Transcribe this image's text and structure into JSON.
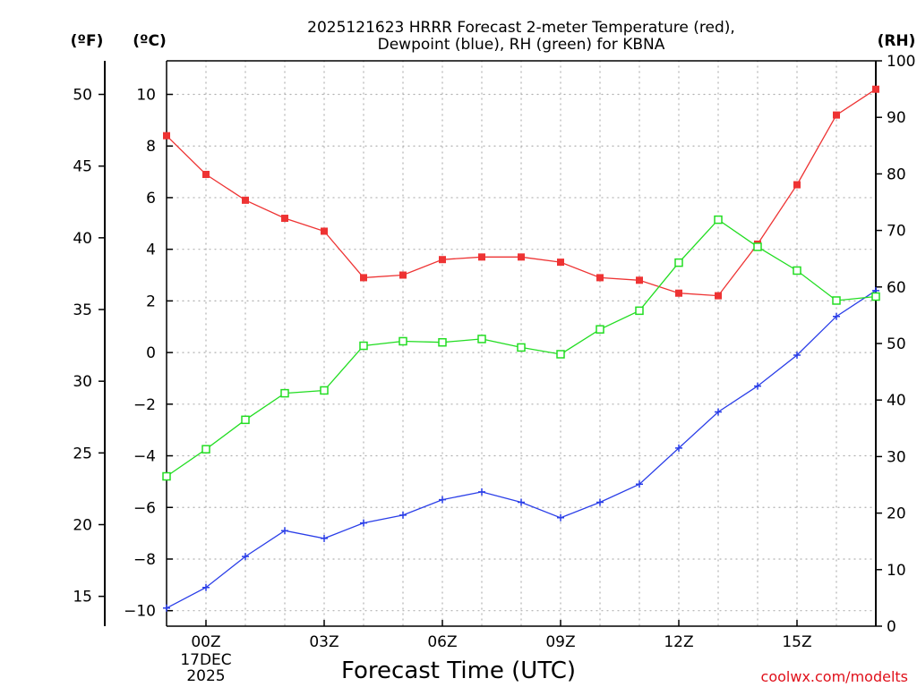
{
  "chart_data": {
    "type": "line",
    "title_line1": "2025121623 HRRR Forecast 2-meter Temperature (red),",
    "title_line2": "Dewpoint (blue), RH (green) for KBNA",
    "xlabel": "Forecast Time (UTC)",
    "date_label_line1": "17DEC",
    "date_label_line2": "2025",
    "credit": "coolwx.com/modelts",
    "units": {
      "fahrenheit": "(ºF)",
      "celsius": "(ºC)",
      "rh": "(RH)"
    },
    "x_range": [
      -1,
      17
    ],
    "x_ticks": [
      {
        "hour": 0,
        "label": "00Z"
      },
      {
        "hour": 3,
        "label": "03Z"
      },
      {
        "hour": 6,
        "label": "06Z"
      },
      {
        "hour": 9,
        "label": "09Z"
      },
      {
        "hour": 12,
        "label": "12Z"
      },
      {
        "hour": 15,
        "label": "15Z"
      }
    ],
    "celsius_range": [
      -10.6,
      11.3
    ],
    "celsius_ticks": [
      10,
      8,
      6,
      4,
      2,
      0,
      -2,
      -4,
      -6,
      -8,
      -10
    ],
    "celsius_tick_labels": [
      "10",
      "8",
      "6",
      "4",
      "2",
      "0",
      "−2",
      "−4",
      "−6",
      "−8",
      "−10"
    ],
    "fahrenheit_ticks": [
      50,
      45,
      40,
      35,
      30,
      25,
      20,
      15
    ],
    "fahrenheit_tick_labels": [
      "50",
      "45",
      "40",
      "35",
      "30",
      "25",
      "20",
      "15"
    ],
    "rh_range": [
      0,
      100
    ],
    "rh_ticks": [
      100,
      90,
      80,
      70,
      60,
      50,
      40,
      30,
      20,
      10,
      0
    ],
    "rh_tick_labels": [
      "100",
      "90",
      "80",
      "70",
      "60",
      "50",
      "40",
      "30",
      "20",
      "10",
      "0"
    ],
    "x": [
      -1,
      0,
      1,
      2,
      3,
      4,
      5,
      6,
      7,
      8,
      9,
      10,
      11,
      12,
      13,
      14,
      15,
      16,
      17
    ],
    "series": [
      {
        "name": "2-meter Temperature",
        "axis": "celsius",
        "color": "#ee3333",
        "marker": "filled-square",
        "values": [
          8.4,
          6.9,
          5.9,
          5.2,
          4.7,
          2.9,
          3.0,
          3.6,
          3.7,
          3.7,
          3.5,
          2.9,
          2.8,
          2.3,
          2.2,
          4.2,
          6.5,
          9.2,
          10.2
        ]
      },
      {
        "name": "Dewpoint",
        "axis": "celsius",
        "color": "#2a3ee8",
        "marker": "plus",
        "values": [
          -9.9,
          -9.1,
          -7.9,
          -6.9,
          -7.2,
          -6.6,
          -6.3,
          -5.7,
          -5.4,
          -5.8,
          -6.4,
          -5.8,
          -5.1,
          -3.7,
          -2.3,
          -1.3,
          -0.1,
          1.4,
          2.4
        ]
      },
      {
        "name": "Relative Humidity",
        "axis": "rh",
        "color": "#22dd22",
        "marker": "open-square",
        "values": [
          26.5,
          31.3,
          36.5,
          41.2,
          41.7,
          49.6,
          50.4,
          50.2,
          50.8,
          49.3,
          48.1,
          52.5,
          55.8,
          64.3,
          71.9,
          67.1,
          62.9,
          57.6,
          58.3
        ]
      }
    ]
  }
}
